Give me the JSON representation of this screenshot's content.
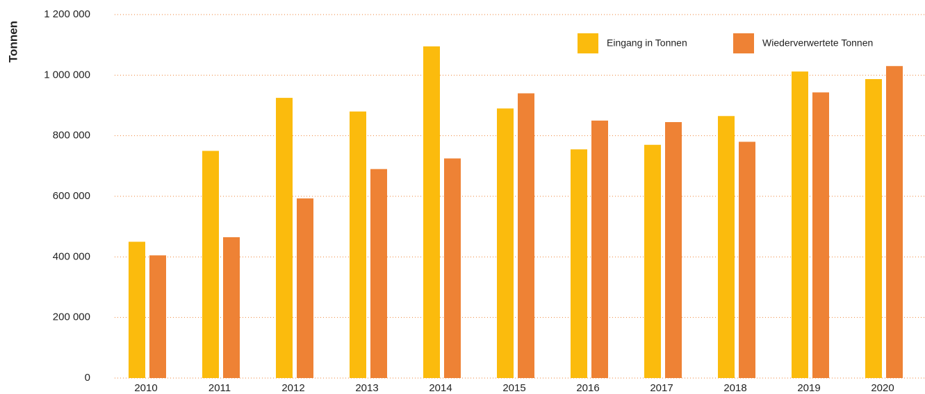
{
  "chart_data": {
    "type": "bar",
    "y_label": "Tonnen",
    "categories": [
      "2010",
      "2011",
      "2012",
      "2013",
      "2014",
      "2015",
      "2016",
      "2017",
      "2018",
      "2019",
      "2020"
    ],
    "series": [
      {
        "name": "Eingang in Tonnen",
        "color": "#fbbb0d",
        "values": [
          450000,
          750000,
          925000,
          880000,
          1095000,
          890000,
          755000,
          770000,
          865000,
          1012000,
          987000
        ]
      },
      {
        "name": "Wiederverwertete Tonnen",
        "color": "#ee8235",
        "values": [
          405000,
          465000,
          593000,
          690000,
          725000,
          940000,
          850000,
          845000,
          780000,
          943000,
          1030000
        ]
      }
    ],
    "ylim": [
      0,
      1200000
    ],
    "yticks": [
      0,
      {
        "value": 200000,
        "label": "200 000"
      },
      {
        "value": 400000,
        "label": "400 000"
      },
      {
        "value": 600000,
        "label": "600 000"
      },
      {
        "value": 800000,
        "label": "800 000"
      },
      {
        "value": 1000000,
        "label": "1 000 000"
      },
      {
        "value": 1200000,
        "label": "1 200 000"
      }
    ],
    "grid": true,
    "legend": "upper right"
  }
}
